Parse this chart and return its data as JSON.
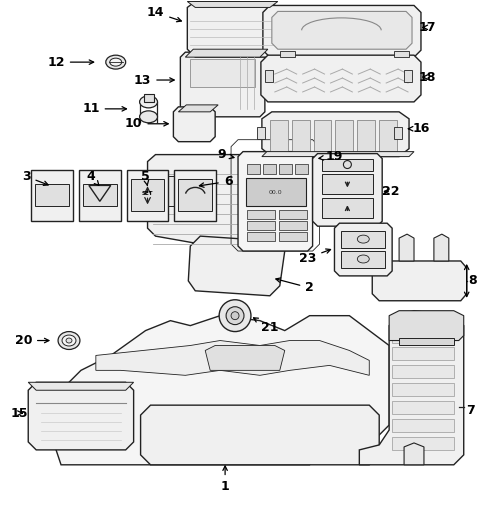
{
  "background_color": "#ffffff",
  "fig_width": 4.85,
  "fig_height": 5.16,
  "dpi": 100,
  "line_color": "#222222",
  "label_fontsize": 9,
  "label_fontweight": "bold"
}
